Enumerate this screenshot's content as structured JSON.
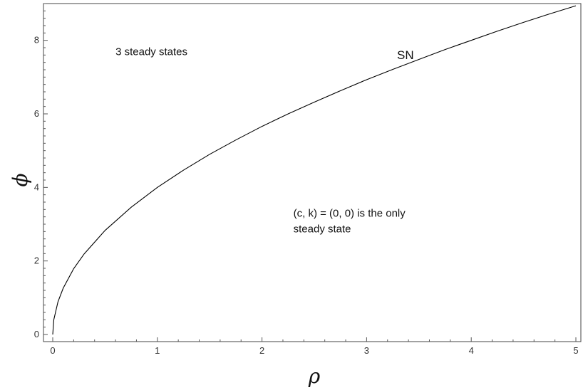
{
  "chart_data": {
    "type": "line",
    "title": "",
    "xlabel": "ρ",
    "ylabel": "ϕ",
    "xlim": [
      0,
      5
    ],
    "ylim": [
      0,
      9
    ],
    "xticks": [
      "0",
      "1",
      "2",
      "3",
      "4",
      "5"
    ],
    "yticks": [
      "0",
      "2",
      "4",
      "6",
      "8"
    ],
    "grid": false,
    "series": [
      {
        "name": "SN",
        "x": [
          0,
          0.01,
          0.05,
          0.1,
          0.2,
          0.3,
          0.5,
          0.75,
          1,
          1.25,
          1.5,
          1.75,
          2,
          2.25,
          2.5,
          2.75,
          3,
          3.25,
          3.5,
          3.75,
          4,
          4.25,
          4.5,
          4.75,
          5
        ],
        "y": [
          0,
          0.4,
          0.89,
          1.26,
          1.79,
          2.19,
          2.83,
          3.46,
          4.0,
          4.47,
          4.9,
          5.29,
          5.66,
          6.0,
          6.32,
          6.63,
          6.93,
          7.21,
          7.48,
          7.75,
          8.0,
          8.25,
          8.49,
          8.72,
          8.94
        ]
      }
    ],
    "annotations": [
      {
        "lines": [
          "3 steady states"
        ],
        "x": 0.6,
        "y": 7.6
      },
      {
        "lines": [
          "(c, k) = (0, 0) is the only",
          "steady state"
        ],
        "x": 2.3,
        "y": 3.2
      }
    ]
  }
}
